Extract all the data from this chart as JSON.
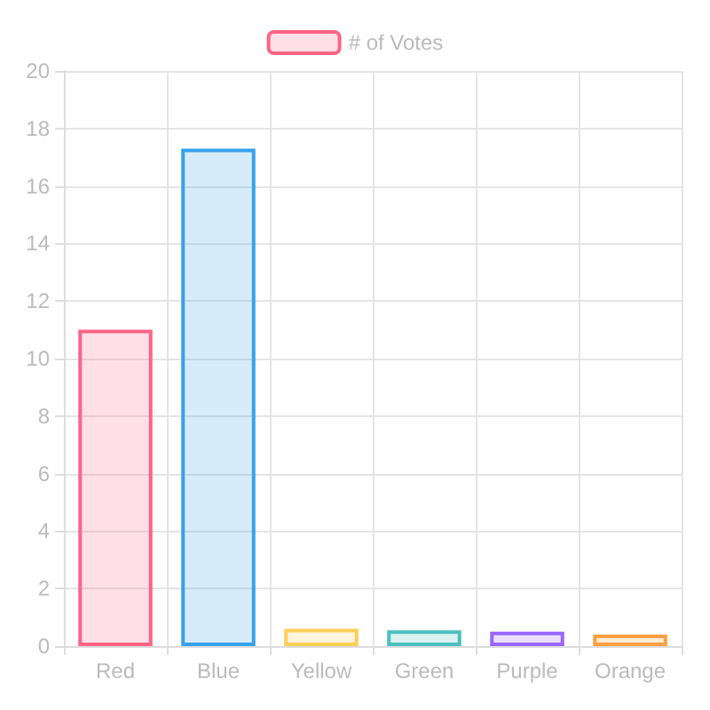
{
  "chart_data": {
    "type": "bar",
    "categories": [
      "Red",
      "Blue",
      "Yellow",
      "Green",
      "Purple",
      "Orange"
    ],
    "series": [
      {
        "name": "# of Votes",
        "values": [
          11,
          17.3,
          0.6,
          0.55,
          0.5,
          0.4
        ]
      }
    ],
    "colors": [
      "#ff6384",
      "#36a2eb",
      "#ffce56",
      "#4bc0c0",
      "#9966ff",
      "#ff9f40"
    ],
    "ylim": [
      0,
      20
    ],
    "yticks": [
      0,
      2,
      4,
      6,
      8,
      10,
      12,
      14,
      16,
      18,
      20
    ],
    "grid": true,
    "legend": "top"
  }
}
